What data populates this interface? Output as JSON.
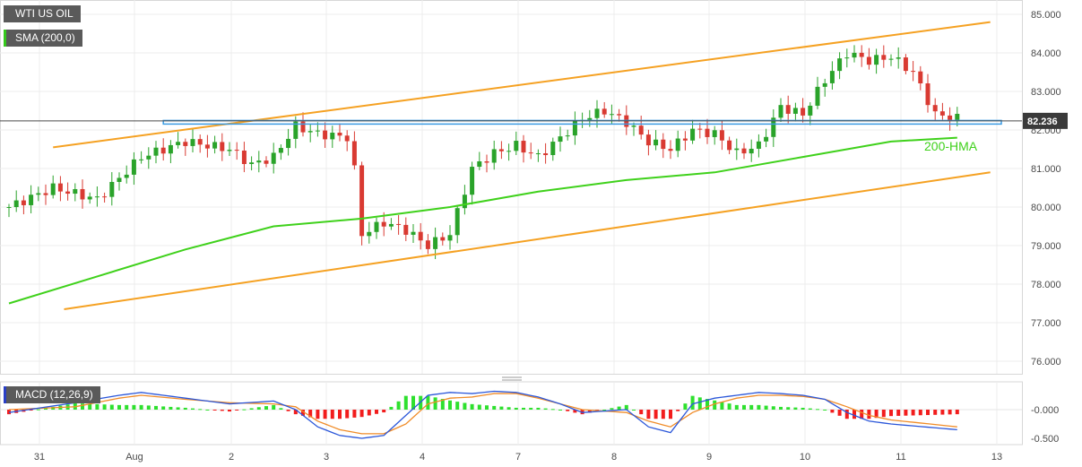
{
  "labels": {
    "instrument": "WTI US OIL",
    "sma": "SMA (200,0)",
    "macd": "MACD (12,26,9)",
    "hma_annotation": "200-HMA",
    "last_price": "82.236"
  },
  "colors": {
    "candle_up": "#2aa32a",
    "candle_down": "#d93a32",
    "sma": "#3fd11b",
    "trend": "#f5a122",
    "support": "#3a9be3",
    "macd_line": "#2a56d9",
    "signal_line": "#f08c28",
    "hist_pos": "#2ee02e",
    "hist_neg": "#f21d1d"
  },
  "chart_data": {
    "type": "candlestick",
    "x_tick_labels": [
      "31",
      "Aug",
      "2",
      "3",
      "4",
      "7",
      "8",
      "9",
      "10",
      "11",
      "13"
    ],
    "y_tick_labels": [
      "85.000",
      "84.000",
      "83.000",
      "82.000",
      "81.000",
      "80.000",
      "79.000",
      "78.000",
      "77.000",
      "76.000"
    ],
    "ylim": [
      75.6,
      85.3
    ],
    "last_price": 82.236,
    "close_path": [
      [
        0,
        80.0
      ],
      [
        2,
        80.5
      ],
      [
        4,
        80.2
      ],
      [
        6,
        81.3
      ],
      [
        8,
        81.7
      ],
      [
        9,
        81.6
      ],
      [
        10,
        81.5
      ],
      [
        11,
        81.1
      ],
      [
        12,
        81.3
      ],
      [
        13,
        82.1
      ],
      [
        14,
        81.9
      ],
      [
        15.5,
        81.8
      ],
      [
        16,
        79.3
      ],
      [
        17,
        79.6
      ],
      [
        18,
        79.4
      ],
      [
        19,
        79.0
      ],
      [
        20,
        79.3
      ],
      [
        21,
        81.0
      ],
      [
        22,
        81.4
      ],
      [
        23,
        81.6
      ],
      [
        24,
        81.3
      ],
      [
        25,
        81.8
      ],
      [
        26,
        82.3
      ],
      [
        27,
        82.5
      ],
      [
        28,
        82.2
      ],
      [
        29,
        81.7
      ],
      [
        30,
        81.5
      ],
      [
        31,
        82.0
      ],
      [
        32,
        81.9
      ],
      [
        33,
        81.4
      ],
      [
        34,
        81.6
      ],
      [
        35,
        82.6
      ],
      [
        36,
        82.4
      ],
      [
        37,
        83.3
      ],
      [
        38,
        84.0
      ],
      [
        39,
        83.8
      ],
      [
        40,
        83.9
      ],
      [
        41,
        83.5
      ],
      [
        42,
        82.4
      ],
      [
        43,
        82.3
      ]
    ],
    "sma_200": [
      [
        0,
        77.5
      ],
      [
        4,
        78.2
      ],
      [
        8,
        78.9
      ],
      [
        12,
        79.5
      ],
      [
        16,
        79.7
      ],
      [
        20,
        80.0
      ],
      [
        24,
        80.4
      ],
      [
        28,
        80.7
      ],
      [
        32,
        80.9
      ],
      [
        36,
        81.3
      ],
      [
        40,
        81.7
      ],
      [
        43,
        81.8
      ]
    ],
    "upper_trend": [
      [
        2,
        81.55
      ],
      [
        44.5,
        84.8
      ]
    ],
    "lower_trend": [
      [
        2.5,
        77.35
      ],
      [
        44.5,
        80.9
      ]
    ],
    "support_level": 82.2,
    "support_range": [
      7,
      45
    ],
    "macd": {
      "ylim": [
        -0.62,
        0.55
      ],
      "tick_labels": [
        "-0.000",
        "-0.500"
      ],
      "macd_line": [
        [
          0,
          -0.05
        ],
        [
          3,
          0.12
        ],
        [
          5,
          0.25
        ],
        [
          6,
          0.3
        ],
        [
          8,
          0.2
        ],
        [
          10,
          0.1
        ],
        [
          12,
          0.15
        ],
        [
          13,
          0.0
        ],
        [
          14,
          -0.3
        ],
        [
          15,
          -0.45
        ],
        [
          16,
          -0.5
        ],
        [
          17,
          -0.45
        ],
        [
          18,
          -0.1
        ],
        [
          19,
          0.25
        ],
        [
          20,
          0.3
        ],
        [
          21,
          0.28
        ],
        [
          22,
          0.32
        ],
        [
          23,
          0.3
        ],
        [
          24,
          0.22
        ],
        [
          25,
          0.1
        ],
        [
          26,
          -0.05
        ],
        [
          28,
          0.0
        ],
        [
          29,
          -0.3
        ],
        [
          30,
          -0.4
        ],
        [
          31,
          0.1
        ],
        [
          32,
          0.2
        ],
        [
          33,
          0.25
        ],
        [
          34,
          0.3
        ],
        [
          35,
          0.28
        ],
        [
          36,
          0.25
        ],
        [
          37,
          0.18
        ],
        [
          38,
          -0.05
        ],
        [
          39,
          -0.2
        ],
        [
          40,
          -0.25
        ],
        [
          43,
          -0.35
        ]
      ],
      "signal_line": [
        [
          0,
          0.0
        ],
        [
          3,
          0.05
        ],
        [
          5,
          0.2
        ],
        [
          6,
          0.25
        ],
        [
          8,
          0.18
        ],
        [
          10,
          0.12
        ],
        [
          12,
          0.1
        ],
        [
          13,
          0.05
        ],
        [
          14,
          -0.2
        ],
        [
          15,
          -0.35
        ],
        [
          16,
          -0.42
        ],
        [
          17,
          -0.42
        ],
        [
          18,
          -0.25
        ],
        [
          19,
          0.1
        ],
        [
          20,
          0.2
        ],
        [
          21,
          0.22
        ],
        [
          22,
          0.28
        ],
        [
          23,
          0.28
        ],
        [
          24,
          0.2
        ],
        [
          25,
          0.1
        ],
        [
          26,
          0.0
        ],
        [
          28,
          -0.05
        ],
        [
          29,
          -0.2
        ],
        [
          30,
          -0.3
        ],
        [
          31,
          -0.05
        ],
        [
          32,
          0.1
        ],
        [
          33,
          0.2
        ],
        [
          34,
          0.25
        ],
        [
          35,
          0.25
        ],
        [
          36,
          0.23
        ],
        [
          37,
          0.18
        ],
        [
          38,
          0.05
        ],
        [
          39,
          -0.1
        ],
        [
          40,
          -0.18
        ],
        [
          43,
          -0.3
        ]
      ]
    }
  }
}
